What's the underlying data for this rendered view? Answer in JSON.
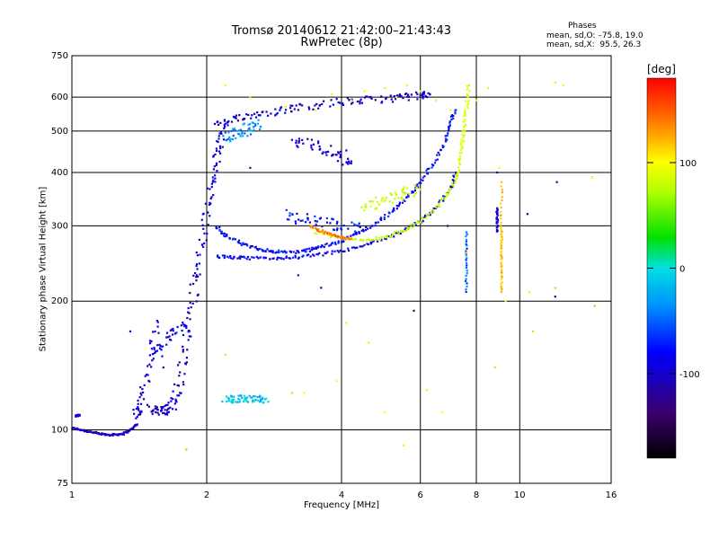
{
  "header": {
    "title_line1": "Tromsø 20140612 21:42:00–21:43:43",
    "title_line2": "RwPretec (8p)"
  },
  "stats": {
    "heading": "Phases",
    "o_line": "mean, sd,O: –75.8, 19.0",
    "x_line": "mean, sd,X:  95.5, 26.3"
  },
  "chart_data": {
    "type": "scatter",
    "xlabel": "Frequency [MHz]",
    "ylabel": "Stationary phase Virtual Height [km]",
    "x_scale": "log",
    "y_scale": "log",
    "xlim": [
      1,
      16
    ],
    "ylim": [
      75,
      750
    ],
    "x_ticks": [
      1,
      2,
      4,
      6,
      8,
      10,
      16
    ],
    "x_tick_labels": [
      "1",
      "2",
      "4",
      "6",
      "8",
      "10",
      "16"
    ],
    "y_ticks": [
      75,
      100,
      200,
      300,
      400,
      500,
      600,
      750
    ],
    "y_tick_labels": [
      "75",
      "100",
      "200",
      "300",
      "400",
      "500",
      "600",
      "750"
    ],
    "x_gridlines": [
      2,
      4,
      6,
      8,
      10
    ],
    "y_gridlines": [
      100,
      200,
      300,
      400,
      500,
      600
    ],
    "colorbar": {
      "unit": "[deg]",
      "range": [
        -180,
        180
      ],
      "ticks": [
        100,
        0,
        -100
      ],
      "tick_labels": [
        "100",
        "0",
        "-100"
      ]
    },
    "series": [
      {
        "kind": "curve",
        "x": [
          1.0,
          1.05,
          1.1,
          1.15,
          1.2,
          1.25,
          1.3,
          1.35,
          1.4
        ],
        "y": [
          101,
          100,
          99,
          98,
          97.5,
          97.5,
          98,
          100,
          103
        ],
        "phase": -120,
        "spread": 0.005
      },
      {
        "kind": "curve",
        "x": [
          1.02,
          1.04
        ],
        "y": [
          108,
          108
        ],
        "phase": -120,
        "spread": 0.005
      },
      {
        "kind": "curve",
        "x": [
          1.38,
          1.42,
          1.45,
          1.5,
          1.55
        ],
        "y": [
          108,
          112,
          125,
          150,
          180
        ],
        "phase": -110,
        "spread": 0.02
      },
      {
        "kind": "curve",
        "x": [
          1.5,
          1.55,
          1.6,
          1.65,
          1.7,
          1.75,
          1.8,
          1.85,
          1.9
        ],
        "y": [
          112,
          111,
          111,
          112,
          118,
          135,
          160,
          195,
          230
        ],
        "phase": -115,
        "spread": 0.025
      },
      {
        "kind": "curve",
        "x": [
          1.55,
          1.6,
          1.7,
          1.8
        ],
        "y": [
          150,
          160,
          170,
          175
        ],
        "phase": -105,
        "spread": 0.03
      },
      {
        "kind": "curve",
        "x": [
          1.9,
          1.95,
          2.0,
          2.05,
          2.1,
          2.15,
          2.2
        ],
        "y": [
          230,
          270,
          320,
          370,
          420,
          470,
          520
        ],
        "phase": -110,
        "spread": 0.02
      },
      {
        "kind": "curve",
        "x": [
          2.1,
          2.3,
          2.5,
          2.8,
          3.1,
          3.5,
          4.0,
          4.5,
          5.0,
          5.5,
          6.0,
          6.3
        ],
        "y": [
          520,
          530,
          545,
          555,
          565,
          575,
          585,
          590,
          595,
          600,
          605,
          610
        ],
        "phase": -115,
        "spread": 0.02
      },
      {
        "kind": "curve",
        "x": [
          2.2,
          2.3,
          2.4,
          2.5,
          2.6
        ],
        "y": [
          480,
          490,
          500,
          510,
          520
        ],
        "phase": -70,
        "spread": 0.03
      },
      {
        "kind": "curve",
        "x": [
          2.1,
          2.2,
          2.4,
          2.6,
          2.8,
          3.0,
          3.3,
          3.5,
          3.8,
          4.1,
          4.4,
          4.8,
          5.2,
          5.6,
          6.0,
          6.4,
          6.8,
          7.0,
          7.2
        ],
        "y": [
          300,
          285,
          272,
          265,
          262,
          260,
          262,
          266,
          272,
          280,
          290,
          305,
          325,
          350,
          380,
          420,
          470,
          520,
          560
        ],
        "phase": -100,
        "spread": 0.008
      },
      {
        "kind": "curve",
        "x": [
          2.1,
          2.3,
          2.5,
          2.8,
          3.1,
          3.5,
          4.0,
          4.5,
          5.0,
          5.5,
          6.0,
          6.5,
          7.0,
          7.2
        ],
        "y": [
          255,
          253,
          252,
          252,
          253,
          256,
          262,
          270,
          280,
          292,
          308,
          330,
          365,
          400
        ],
        "phase": -105,
        "spread": 0.008
      },
      {
        "kind": "curve",
        "x": [
          3.5,
          4.0,
          4.5,
          5.0,
          5.5,
          6.0,
          6.5,
          7.0,
          7.3
        ],
        "y": [
          290,
          280,
          278,
          282,
          292,
          308,
          330,
          365,
          400
        ],
        "phase": 60,
        "spread": 0.008
      },
      {
        "kind": "curve",
        "x": [
          3.4,
          3.6,
          3.8,
          4.0,
          4.2
        ],
        "y": [
          300,
          292,
          286,
          282,
          280
        ],
        "phase": 135,
        "spread": 0.006
      },
      {
        "kind": "curve",
        "x": [
          7.3,
          7.4,
          7.5,
          7.6,
          7.7
        ],
        "y": [
          400,
          450,
          500,
          560,
          640
        ],
        "phase": 70,
        "spread": 0.008
      },
      {
        "kind": "curve",
        "x": [
          3.0,
          3.3,
          3.6,
          4.0,
          4.4
        ],
        "y": [
          320,
          310,
          305,
          300,
          298
        ],
        "phase": -100,
        "spread": 0.03
      },
      {
        "kind": "curve",
        "x": [
          4.5,
          4.8,
          5.2,
          5.6,
          6.0
        ],
        "y": [
          330,
          340,
          350,
          360,
          365
        ],
        "phase": 60,
        "spread": 0.03
      },
      {
        "kind": "curve",
        "x": [
          3.1,
          3.4,
          3.7,
          4.0,
          4.2
        ],
        "y": [
          470,
          465,
          455,
          440,
          420
        ],
        "phase": -115,
        "spread": 0.03
      },
      {
        "kind": "curve",
        "x": [
          9.1,
          9.1,
          9.1,
          9.1,
          9.1
        ],
        "y": [
          210,
          240,
          270,
          300,
          380
        ],
        "phase": 110,
        "spread": 0.004
      },
      {
        "kind": "curve",
        "x": [
          8.9,
          8.9,
          8.9
        ],
        "y": [
          290,
          310,
          330
        ],
        "phase": -110,
        "spread": 0.004
      },
      {
        "kind": "curve",
        "x": [
          7.6,
          7.6,
          7.6
        ],
        "y": [
          210,
          250,
          290
        ],
        "phase": -80,
        "spread": 0.004
      },
      {
        "kind": "curve",
        "x": [
          2.2,
          2.3,
          2.4,
          2.5,
          2.6,
          2.7
        ],
        "y": [
          118,
          118,
          118,
          118,
          118,
          118
        ],
        "phase": -50,
        "spread": 0.02
      },
      {
        "kind": "scatter",
        "x": [
          2.2,
          2.5,
          3.0,
          3.5,
          3.8,
          4.2,
          4.5,
          5.0,
          5.3,
          5.6,
          6.0,
          6.5,
          7.0,
          8.0,
          8.5,
          9.0,
          10.5,
          12.0,
          12.5,
          14.5
        ],
        "y": [
          640,
          600,
          570,
          560,
          610,
          590,
          620,
          630,
          600,
          640,
          620,
          590,
          560,
          590,
          630,
          410,
          210,
          650,
          640,
          390
        ],
        "phase": 80
      },
      {
        "kind": "scatter",
        "x": [
          1.8,
          2.2,
          3.1,
          3.3,
          3.9,
          4.1,
          4.6,
          5.0,
          5.5,
          6.2,
          6.7,
          7.6,
          8.8,
          9.3,
          10.7,
          12.0,
          14.7
        ],
        "y": [
          90,
          150,
          122,
          122,
          130,
          178,
          160,
          110,
          92,
          124,
          110,
          260,
          140,
          200,
          170,
          215,
          195
        ],
        "phase": 100
      },
      {
        "kind": "scatter",
        "x": [
          1.35,
          1.6,
          2.5,
          3.2,
          3.6,
          3.9,
          5.8,
          6.9,
          8.9,
          10.4,
          12.0,
          12.1
        ],
        "y": [
          170,
          140,
          410,
          230,
          215,
          440,
          190,
          300,
          400,
          320,
          205,
          380
        ],
        "phase": -120
      }
    ]
  }
}
